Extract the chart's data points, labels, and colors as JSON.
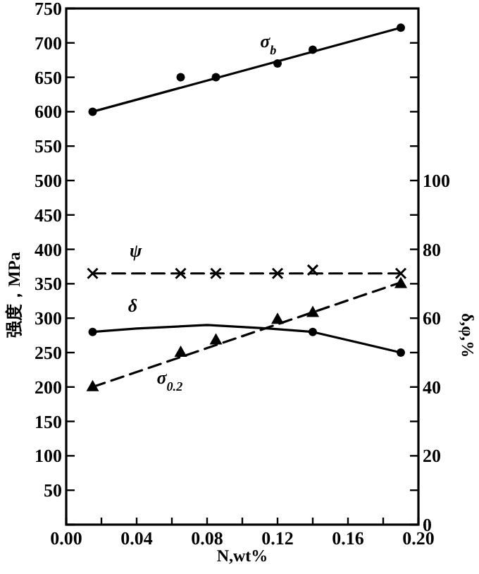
{
  "chart_data": {
    "type": "line",
    "xlabel": "N,wt%",
    "ylabel": "强度，MPa",
    "y2label": "δ,φ,%",
    "x": [
      0.015,
      0.065,
      0.085,
      0.12,
      0.14,
      0.19
    ],
    "series": [
      {
        "type": "scatter",
        "marker": "circle",
        "color": "#000000",
        "values": [
          600,
          650,
          650,
          670,
          690,
          722
        ]
      },
      {
        "type": "line",
        "name": "σ$_{b}$",
        "marker": "none",
        "line_style": "solid",
        "color": "#000000",
        "x": [
          0.015,
          0.19
        ],
        "values": [
          600,
          722
        ]
      },
      {
        "type": "scatter",
        "marker": "cross",
        "axis": "y2",
        "color": "#000000",
        "values": [
          73,
          73,
          73,
          73,
          74,
          73
        ]
      },
      {
        "type": "line",
        "name": "ψ",
        "marker": "none",
        "line_style": "dashed",
        "axis": "y2",
        "color": "#000000",
        "x": [
          0.015,
          0.19
        ],
        "values": [
          73,
          73
        ]
      },
      {
        "type": "scatter",
        "marker": "circle",
        "axis": "y2",
        "color": "#000000",
        "x": [
          0.015,
          0.14,
          0.19
        ],
        "values": [
          56,
          56,
          50
        ]
      },
      {
        "type": "line",
        "name": "δ",
        "marker": "none",
        "line_style": "solid",
        "axis": "y2",
        "color": "#000000",
        "x": [
          0.015,
          0.04,
          0.08,
          0.115,
          0.14,
          0.19
        ],
        "values": [
          56,
          57,
          58,
          57,
          56,
          50
        ]
      },
      {
        "type": "scatter",
        "marker": "triangle",
        "color": "#000000",
        "values": [
          200,
          250,
          268,
          298,
          308,
          350
        ]
      },
      {
        "type": "line",
        "name": "σ$_{0.2}$",
        "marker": "none",
        "line_style": "dashed",
        "color": "#000000",
        "x": [
          0.015,
          0.19
        ],
        "values": [
          200,
          352
        ]
      }
    ],
    "xlim": [
      0,
      0.2
    ],
    "xticks": [
      {
        "value": 0,
        "label": "0.00"
      },
      {
        "value": 0.02,
        "label": null
      },
      {
        "value": 0.04,
        "label": "0.04"
      },
      {
        "value": 0.06,
        "label": null
      },
      {
        "value": 0.08,
        "label": "0.08"
      },
      {
        "value": 0.1,
        "label": null
      },
      {
        "value": 0.12,
        "label": "0.12"
      },
      {
        "value": 0.14,
        "label": null
      },
      {
        "value": 0.16,
        "label": "0.16"
      },
      {
        "value": 0.18,
        "label": null
      },
      {
        "value": 0.2,
        "label": "0.20"
      }
    ],
    "ylim": [
      0,
      750
    ],
    "yticks": [
      {
        "value": 0,
        "label": null
      },
      50,
      100,
      150,
      200,
      250,
      300,
      350,
      400,
      450,
      500,
      550,
      600,
      650,
      700,
      750
    ],
    "y2lim": [
      0,
      150
    ],
    "y2ticks": [
      0,
      {
        "value": 10,
        "label": null
      },
      20,
      {
        "value": 30,
        "label": null
      },
      40,
      {
        "value": 50,
        "label": null
      },
      60,
      {
        "value": 70,
        "label": null
      },
      80,
      {
        "value": 90,
        "label": null
      },
      100,
      {
        "value": 110,
        "label": null
      },
      {
        "value": 120,
        "label": null
      },
      {
        "value": 130,
        "label": null
      },
      {
        "value": 140,
        "label": null
      }
    ],
    "grid": false,
    "legend": false
  }
}
